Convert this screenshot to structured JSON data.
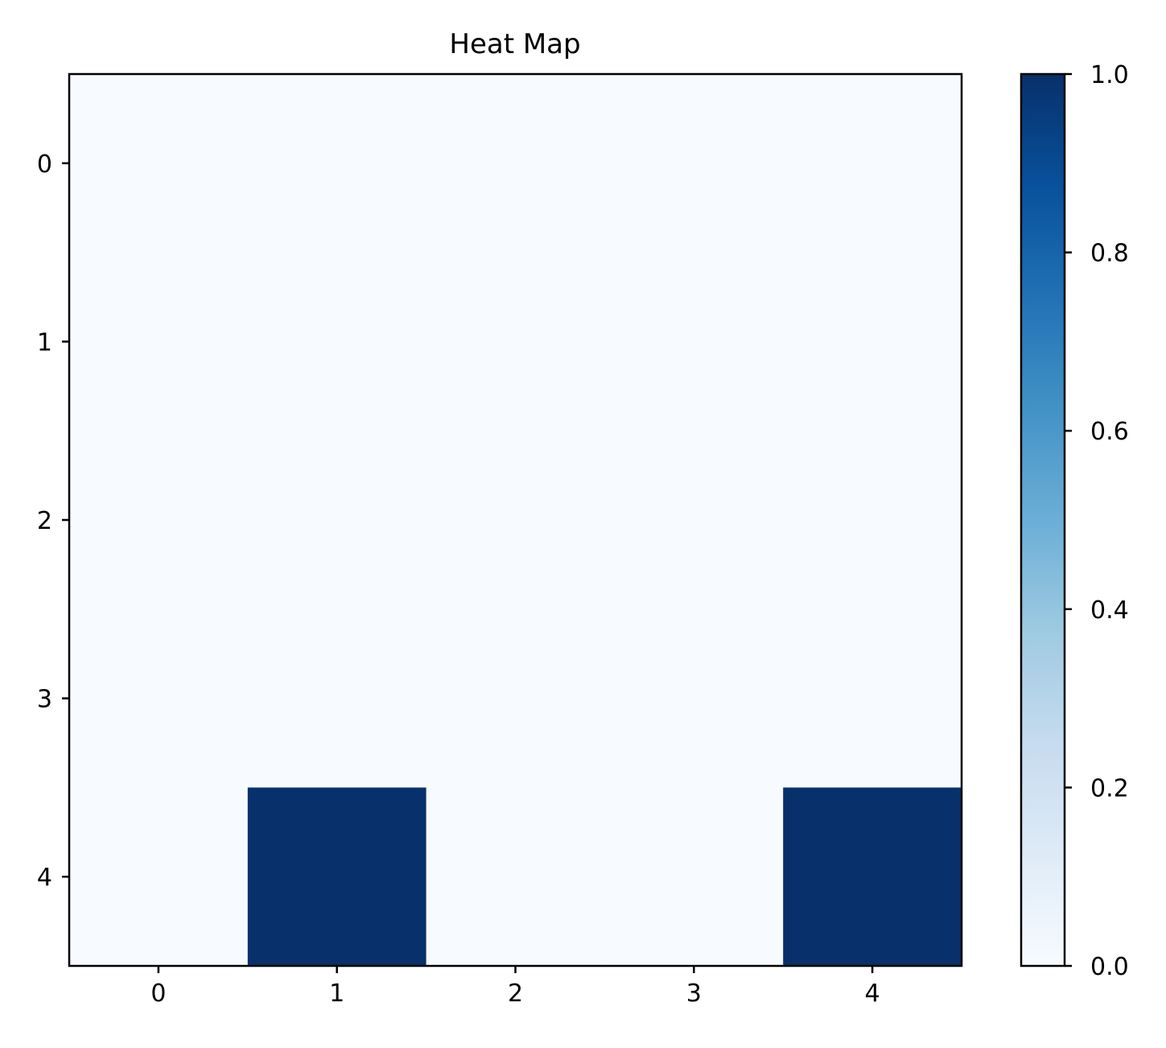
{
  "chart_data": {
    "type": "heatmap",
    "title": "Heat Map",
    "xlabel": "",
    "ylabel": "",
    "x_categories": [
      "0",
      "1",
      "2",
      "3",
      "4"
    ],
    "y_categories": [
      "0",
      "1",
      "2",
      "3",
      "4"
    ],
    "values": [
      [
        0,
        0,
        0,
        0,
        0
      ],
      [
        0,
        0,
        0,
        0,
        0
      ],
      [
        0,
        0,
        0,
        0,
        0
      ],
      [
        0,
        0,
        0,
        0,
        0
      ],
      [
        0,
        1,
        0,
        0,
        1
      ]
    ],
    "colormap": "Blues",
    "colormap_stops": [
      "#f7fbff",
      "#deebf7",
      "#c6dbef",
      "#9ecae1",
      "#6baed6",
      "#4292c6",
      "#2171b5",
      "#08519c",
      "#08306b"
    ],
    "vmin": 0,
    "vmax": 1,
    "colorbar": {
      "ticks": [
        "0.0",
        "0.2",
        "0.4",
        "0.6",
        "0.8",
        "1.0"
      ]
    },
    "grid": false
  }
}
